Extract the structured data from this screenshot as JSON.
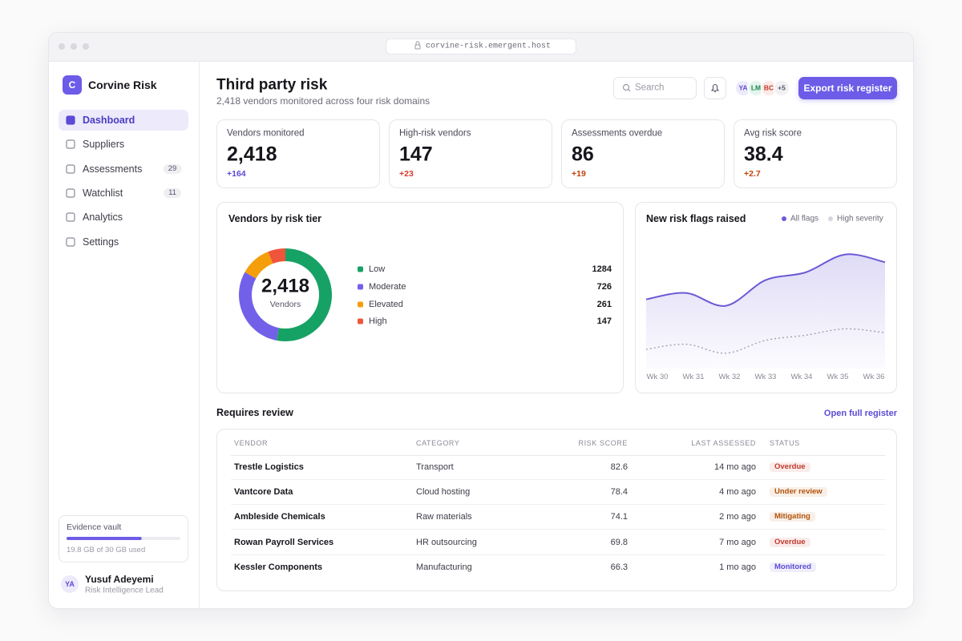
{
  "browser": {
    "url": "corvine-risk.emergent.host"
  },
  "sidebar": {
    "logo": "C",
    "brand": "Corvine Risk",
    "nav": [
      {
        "label": "Dashboard",
        "active": true
      },
      {
        "label": "Suppliers"
      },
      {
        "label": "Assessments",
        "badge": "29"
      },
      {
        "label": "Watchlist",
        "badge": "11"
      },
      {
        "label": "Analytics"
      },
      {
        "label": "Settings"
      }
    ],
    "storage": {
      "label": "Evidence vault",
      "used": 19.8,
      "total": 30,
      "caption": "19.8 GB of 30 GB used"
    },
    "user": {
      "initials": "YA",
      "name": "Yusuf Adeyemi",
      "role": "Risk Intelligence Lead"
    }
  },
  "header": {
    "title": "Third party risk",
    "subtitle": "2,418 vendors monitored across four risk domains",
    "search_placeholder": "Search",
    "avatars": [
      "YA",
      "LM",
      "BC"
    ],
    "more_avatars": "+5",
    "button": "Export risk register"
  },
  "kpis": [
    {
      "label": "Vendors monitored",
      "value": "2,418",
      "delta": "+164",
      "delta_color": "#5b4bd6"
    },
    {
      "label": "High-risk vendors",
      "value": "147",
      "delta": "+23",
      "delta_color": "#d63b2f"
    },
    {
      "label": "Assessments overdue",
      "value": "86",
      "delta": "+19",
      "delta_color": "#c2410c"
    },
    {
      "label": "Avg risk score",
      "value": "38.4",
      "delta": "+2.7",
      "delta_color": "#c2410c"
    }
  ],
  "risk_tier_chart": {
    "type": "donut",
    "title": "Vendors by risk tier",
    "center_value": "2,418",
    "center_label": "Vendors",
    "categories": [
      "Low",
      "Moderate",
      "Elevated",
      "High"
    ],
    "values": [
      1284,
      726,
      261,
      147
    ],
    "colors": [
      "#17a265",
      "#7261e8",
      "#f59e0b",
      "#ef553b"
    ]
  },
  "flags_chart": {
    "type": "area",
    "title": "New risk flags raised",
    "categories": [
      "Wk 30",
      "Wk 31",
      "Wk 32",
      "Wk 33",
      "Wk 34",
      "Wk 35",
      "Wk 36"
    ],
    "ylim": [
      0,
      100
    ],
    "series": [
      {
        "name": "All flags",
        "color": "#6b5bd6",
        "values": [
          54,
          59,
          49,
          69,
          75,
          89,
          83
        ]
      },
      {
        "name": "High severity",
        "color": "#a3a1b3",
        "dashed": true,
        "values": [
          15,
          19,
          12,
          22,
          26,
          31,
          28
        ]
      }
    ]
  },
  "table": {
    "title": "Requires review",
    "link": "Open full register",
    "columns": [
      "VENDOR",
      "CATEGORY",
      "RISK SCORE",
      "LAST ASSESSED",
      "STATUS"
    ],
    "rows": [
      {
        "vendor": "Trestle Logistics",
        "category": "Transport",
        "risk_score": "82.6",
        "last_assessed": "14 mo ago",
        "status": "Overdue",
        "status_color": "#c0392b"
      },
      {
        "vendor": "Vantcore Data",
        "category": "Cloud hosting",
        "risk_score": "78.4",
        "last_assessed": "4 mo ago",
        "status": "Under review",
        "status_color": "#b45309"
      },
      {
        "vendor": "Ambleside Chemicals",
        "category": "Raw materials",
        "risk_score": "74.1",
        "last_assessed": "2 mo ago",
        "status": "Mitigating",
        "status_color": "#b45309"
      },
      {
        "vendor": "Rowan Payroll Services",
        "category": "HR outsourcing",
        "risk_score": "69.8",
        "last_assessed": "7 mo ago",
        "status": "Overdue",
        "status_color": "#c0392b"
      },
      {
        "vendor": "Kessler Components",
        "category": "Manufacturing",
        "risk_score": "66.3",
        "last_assessed": "1 mo ago",
        "status": "Monitored",
        "status_color": "#5b4bd6"
      }
    ]
  }
}
